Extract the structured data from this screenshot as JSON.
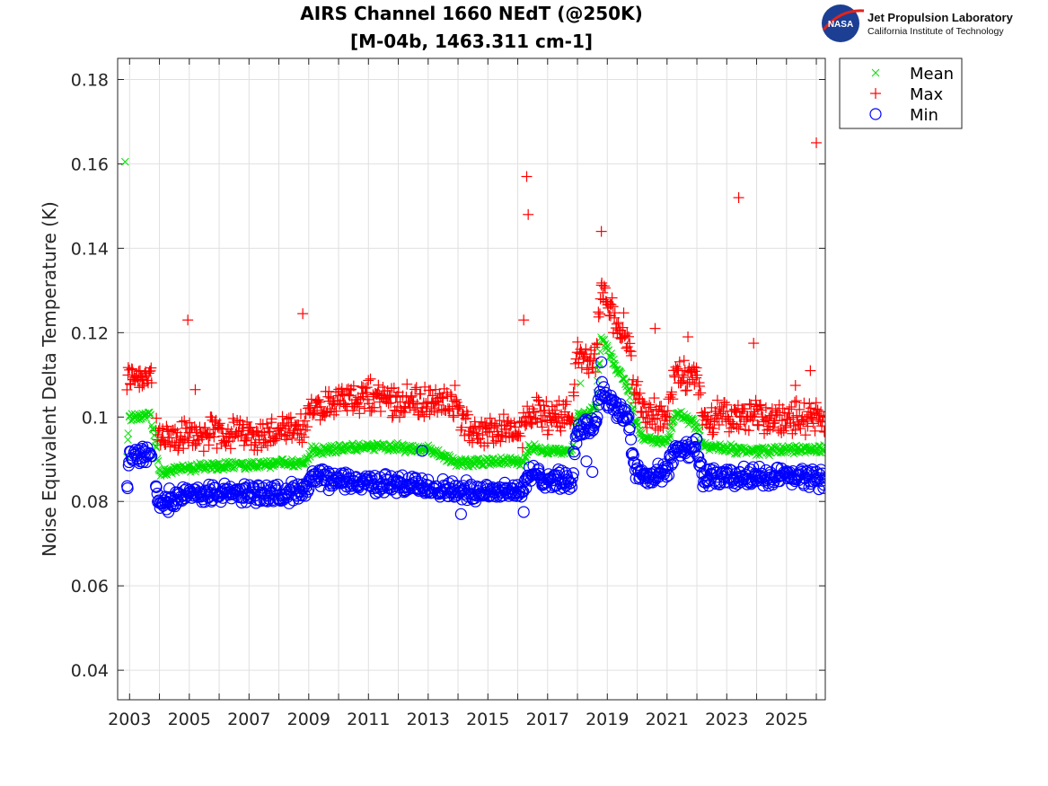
{
  "title": {
    "line1": "AIRS Channel 1660 NEdT (@250K)",
    "line2": "[M-04b, 1463.311 cm-1]"
  },
  "logo": {
    "badge": "NASA",
    "org": "Jet Propulsion Laboratory",
    "sub": "California Institute of Technology"
  },
  "colors": {
    "mean": "#00e000",
    "max": "#ff0000",
    "min": "#0000ff",
    "grid": "#e0e0e0",
    "axis": "#262626"
  },
  "chart_data": {
    "type": "scatter",
    "title": "AIRS Channel 1660 NEdT (@250K) [M-04b, 1463.311 cm-1]",
    "xlabel": "",
    "ylabel": "Noise Equivalent Delta Temperature (K)",
    "xlim": [
      2002.6,
      2026.3
    ],
    "ylim": [
      0.033,
      0.185
    ],
    "x_ticks": [
      2003,
      2005,
      2007,
      2009,
      2011,
      2013,
      2015,
      2017,
      2019,
      2021,
      2023,
      2025
    ],
    "x_minor_ticks": [
      2004,
      2006,
      2008,
      2010,
      2012,
      2014,
      2016,
      2018,
      2020,
      2022,
      2024,
      2026
    ],
    "y_ticks": [
      0.04,
      0.06,
      0.08,
      0.1,
      0.12,
      0.14,
      0.16,
      0.18
    ],
    "y_tick_labels": [
      "0.04",
      "0.06",
      "0.08",
      "0.1",
      "0.12",
      "0.14",
      "0.16",
      "0.18"
    ],
    "grid": true,
    "legend_position": "outside-top-right",
    "series": [
      {
        "name": "Mean",
        "marker": "x",
        "color": "#00e000",
        "trend": [
          [
            2002.9,
            0.0895
          ],
          [
            2003.0,
            0.1
          ],
          [
            2003.7,
            0.1005
          ],
          [
            2003.9,
            0.092
          ],
          [
            2004.0,
            0.087
          ],
          [
            2005.0,
            0.088
          ],
          [
            2006.0,
            0.0885
          ],
          [
            2007.0,
            0.0885
          ],
          [
            2008.0,
            0.089
          ],
          [
            2008.9,
            0.089
          ],
          [
            2009.1,
            0.092
          ],
          [
            2011.0,
            0.093
          ],
          [
            2013.0,
            0.0925
          ],
          [
            2014.0,
            0.089
          ],
          [
            2015.0,
            0.0895
          ],
          [
            2016.2,
            0.0895
          ],
          [
            2016.4,
            0.093
          ],
          [
            2017.0,
            0.092
          ],
          [
            2017.8,
            0.092
          ],
          [
            2018.0,
            0.1
          ],
          [
            2018.6,
            0.102
          ],
          [
            2018.8,
            0.119
          ],
          [
            2019.2,
            0.113
          ],
          [
            2019.7,
            0.107
          ],
          [
            2019.9,
            0.099
          ],
          [
            2020.2,
            0.095
          ],
          [
            2021.0,
            0.094
          ],
          [
            2021.3,
            0.101
          ],
          [
            2022.0,
            0.098
          ],
          [
            2022.2,
            0.093
          ],
          [
            2023.0,
            0.0925
          ],
          [
            2024.0,
            0.092
          ],
          [
            2026.3,
            0.0925
          ]
        ],
        "outliers": [
          [
            2002.85,
            0.1605
          ],
          [
            2018.1,
            0.108
          ]
        ]
      },
      {
        "name": "Max",
        "marker": "+",
        "color": "#ff0000",
        "trend": [
          [
            2002.9,
            0.1075
          ],
          [
            2003.0,
            0.11
          ],
          [
            2003.7,
            0.11
          ],
          [
            2003.85,
            0.1
          ],
          [
            2004.0,
            0.094
          ],
          [
            2005.0,
            0.0955
          ],
          [
            2006.0,
            0.0965
          ],
          [
            2007.0,
            0.0962
          ],
          [
            2008.0,
            0.096
          ],
          [
            2008.9,
            0.097
          ],
          [
            2009.1,
            0.103
          ],
          [
            2011.0,
            0.105
          ],
          [
            2012.0,
            0.104
          ],
          [
            2013.0,
            0.103
          ],
          [
            2014.0,
            0.104
          ],
          [
            2014.2,
            0.097
          ],
          [
            2015.0,
            0.0965
          ],
          [
            2016.2,
            0.097
          ],
          [
            2016.4,
            0.102
          ],
          [
            2017.0,
            0.1
          ],
          [
            2017.8,
            0.101
          ],
          [
            2018.0,
            0.115
          ],
          [
            2018.6,
            0.113
          ],
          [
            2018.8,
            0.13
          ],
          [
            2019.2,
            0.124
          ],
          [
            2019.7,
            0.119
          ],
          [
            2019.9,
            0.107
          ],
          [
            2020.3,
            0.101
          ],
          [
            2021.0,
            0.1
          ],
          [
            2021.3,
            0.11
          ],
          [
            2022.0,
            0.109
          ],
          [
            2022.2,
            0.1
          ],
          [
            2023.0,
            0.1
          ],
          [
            2024.0,
            0.1
          ],
          [
            2026.3,
            0.1
          ]
        ],
        "outliers": [
          [
            2004.95,
            0.123
          ],
          [
            2008.8,
            0.1245
          ],
          [
            2016.3,
            0.157
          ],
          [
            2016.35,
            0.148
          ],
          [
            2016.2,
            0.123
          ],
          [
            2018.8,
            0.144
          ],
          [
            2023.4,
            0.152
          ],
          [
            2023.9,
            0.1175
          ],
          [
            2026.0,
            0.165
          ],
          [
            2005.2,
            0.1065
          ],
          [
            2020.6,
            0.121
          ],
          [
            2021.7,
            0.119
          ],
          [
            2025.8,
            0.111
          ],
          [
            2025.3,
            0.1075
          ]
        ]
      },
      {
        "name": "Min",
        "marker": "o",
        "color": "#0000ff",
        "trend": [
          [
            2002.9,
            0.081
          ],
          [
            2003.0,
            0.0905
          ],
          [
            2003.7,
            0.0915
          ],
          [
            2003.85,
            0.083
          ],
          [
            2004.0,
            0.0805
          ],
          [
            2005.0,
            0.0815
          ],
          [
            2006.0,
            0.082
          ],
          [
            2007.0,
            0.082
          ],
          [
            2008.0,
            0.082
          ],
          [
            2008.9,
            0.0825
          ],
          [
            2009.1,
            0.0855
          ],
          [
            2011.0,
            0.0845
          ],
          [
            2013.0,
            0.0835
          ],
          [
            2014.0,
            0.0825
          ],
          [
            2015.0,
            0.0825
          ],
          [
            2016.2,
            0.0825
          ],
          [
            2016.4,
            0.0865
          ],
          [
            2017.0,
            0.0855
          ],
          [
            2017.8,
            0.0845
          ],
          [
            2018.0,
            0.097
          ],
          [
            2018.6,
            0.0985
          ],
          [
            2018.8,
            0.107
          ],
          [
            2019.2,
            0.1025
          ],
          [
            2019.7,
            0.1
          ],
          [
            2019.9,
            0.0885
          ],
          [
            2020.3,
            0.0855
          ],
          [
            2021.0,
            0.087
          ],
          [
            2021.3,
            0.0925
          ],
          [
            2022.0,
            0.093
          ],
          [
            2022.2,
            0.0855
          ],
          [
            2023.0,
            0.0855
          ],
          [
            2024.0,
            0.086
          ],
          [
            2026.3,
            0.0855
          ]
        ],
        "outliers": [
          [
            2004.3,
            0.0775
          ],
          [
            2014.1,
            0.077
          ],
          [
            2016.2,
            0.0775
          ],
          [
            2012.8,
            0.092
          ],
          [
            2018.8,
            0.113
          ],
          [
            2018.3,
            0.0895
          ],
          [
            2018.5,
            0.087
          ]
        ]
      }
    ]
  }
}
